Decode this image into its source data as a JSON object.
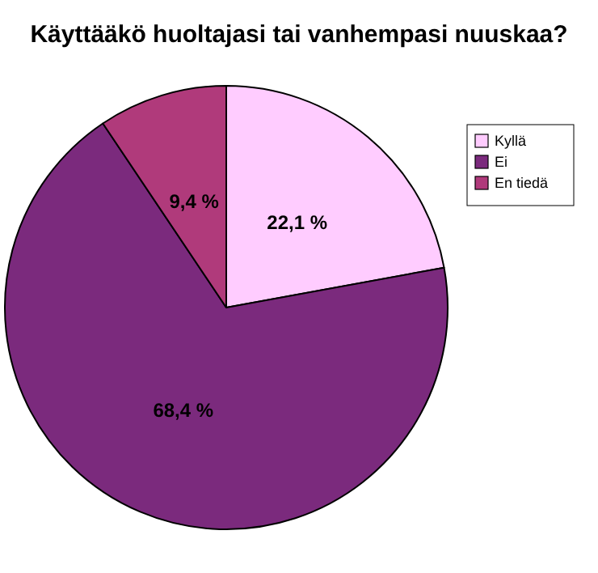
{
  "chart_data": {
    "type": "pie",
    "title": "Käyttääkö huoltajasi tai vanhempasi nuuskaa?",
    "categories": [
      "Kyllä",
      "Ei",
      "En tiedä"
    ],
    "values": [
      22.1,
      68.4,
      9.4
    ],
    "value_labels": [
      "22,1 %",
      "68,4 %",
      "9,4 %"
    ],
    "colors": [
      "#ffccff",
      "#7b2a7d",
      "#b03a7b"
    ],
    "legend": "right"
  }
}
